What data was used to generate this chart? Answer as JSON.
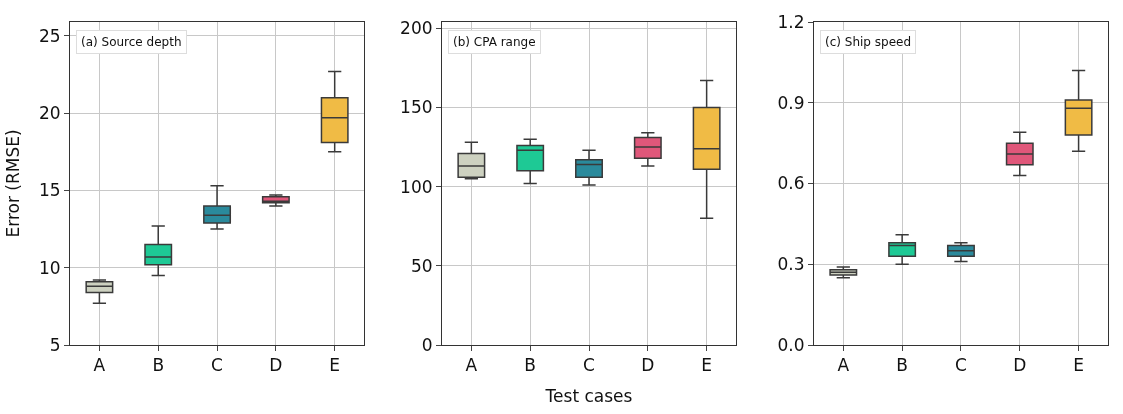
{
  "chart_data": [
    {
      "type": "box",
      "title": "(a) Source depth",
      "ylabel": "Error (RMSE)",
      "categories": [
        "A",
        "B",
        "C",
        "D",
        "E"
      ],
      "colors": [
        "#cdd1c0",
        "#1ec995",
        "#2a8a9c",
        "#e0577a",
        "#f0bb45"
      ],
      "ylim": [
        5,
        25.9
      ],
      "yticks": [
        5,
        10,
        15,
        20,
        25
      ],
      "grid": true,
      "boxes": [
        {
          "low": 7.7,
          "q1": 8.4,
          "median": 8.8,
          "q3": 9.1,
          "high": 9.2
        },
        {
          "low": 9.5,
          "q1": 10.2,
          "median": 10.7,
          "q3": 11.5,
          "high": 12.7
        },
        {
          "low": 12.5,
          "q1": 12.9,
          "median": 13.4,
          "q3": 14.0,
          "high": 15.3
        },
        {
          "low": 14.0,
          "q1": 14.2,
          "median": 14.3,
          "q3": 14.6,
          "high": 14.7
        },
        {
          "low": 17.5,
          "q1": 18.1,
          "median": 19.7,
          "q3": 21.0,
          "high": 22.7
        }
      ]
    },
    {
      "type": "box",
      "title": "(b) CPA range",
      "xlabel": "Test cases",
      "categories": [
        "A",
        "B",
        "C",
        "D",
        "E"
      ],
      "colors": [
        "#cdd1c0",
        "#1ec995",
        "#2a8a9c",
        "#e0577a",
        "#f0bb45"
      ],
      "ylim": [
        0,
        204
      ],
      "yticks": [
        0,
        50,
        100,
        150,
        200
      ],
      "grid": true,
      "boxes": [
        {
          "low": 105,
          "q1": 106,
          "median": 113,
          "q3": 121,
          "high": 128
        },
        {
          "low": 102,
          "q1": 110,
          "median": 123,
          "q3": 126,
          "high": 130
        },
        {
          "low": 101,
          "q1": 106,
          "median": 114,
          "q3": 117,
          "high": 123
        },
        {
          "low": 113,
          "q1": 118,
          "median": 125,
          "q3": 131,
          "high": 134
        },
        {
          "low": 80,
          "q1": 111,
          "median": 124,
          "q3": 150,
          "high": 167
        }
      ]
    },
    {
      "type": "box",
      "title": "(c) Ship speed",
      "categories": [
        "A",
        "B",
        "C",
        "D",
        "E"
      ],
      "colors": [
        "#cdd1c0",
        "#1ec995",
        "#2a8a9c",
        "#e0577a",
        "#f0bb45"
      ],
      "ylim": [
        0,
        1.2
      ],
      "yticks": [
        {
          "value": 0,
          "label": "0.0"
        },
        0.3,
        0.6,
        0.9,
        1.2
      ],
      "grid": true,
      "boxes": [
        {
          "low": 0.25,
          "q1": 0.26,
          "median": 0.27,
          "q3": 0.28,
          "high": 0.29
        },
        {
          "low": 0.3,
          "q1": 0.33,
          "median": 0.37,
          "q3": 0.38,
          "high": 0.41
        },
        {
          "low": 0.31,
          "q1": 0.33,
          "median": 0.35,
          "q3": 0.37,
          "high": 0.38
        },
        {
          "low": 0.63,
          "q1": 0.67,
          "median": 0.71,
          "q3": 0.75,
          "high": 0.79
        },
        {
          "low": 0.72,
          "q1": 0.78,
          "median": 0.88,
          "q3": 0.91,
          "high": 1.02
        }
      ]
    }
  ]
}
